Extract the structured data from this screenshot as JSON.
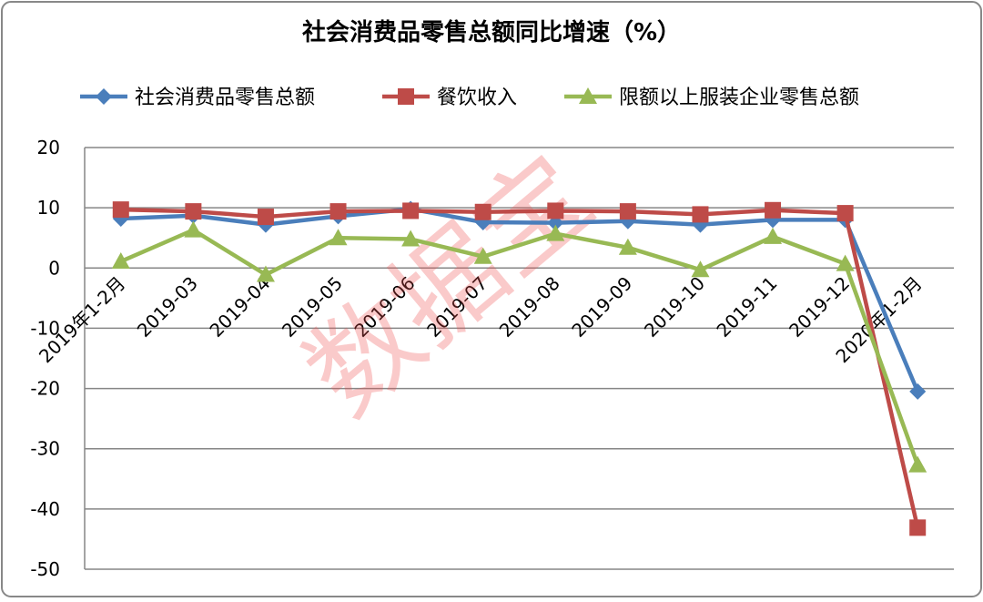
{
  "chart_data": {
    "type": "line",
    "title": "社会消费品零售总额同比增速（%）",
    "watermark": "数据宝",
    "categories": [
      "2019年1-2月",
      "2019-03",
      "2019-04",
      "2019-05",
      "2019-06",
      "2019-07",
      "2019-08",
      "2019-09",
      "2019-10",
      "2019-11",
      "2019-12",
      "2020年1-2月"
    ],
    "series": [
      {
        "name": "社会消费品零售总额",
        "color": "#4a7ebb",
        "marker": "diamond",
        "values": [
          8.2,
          8.7,
          7.2,
          8.6,
          9.8,
          7.6,
          7.5,
          7.8,
          7.2,
          8.0,
          8.0,
          -20.5
        ]
      },
      {
        "name": "餐饮收入",
        "color": "#be4b48",
        "marker": "square",
        "values": [
          9.7,
          9.4,
          8.5,
          9.4,
          9.5,
          9.3,
          9.5,
          9.4,
          8.9,
          9.6,
          9.1,
          -43.1
        ]
      },
      {
        "name": "限额以上服装企业零售总额",
        "color": "#98b954",
        "marker": "triangle",
        "values": [
          1.1,
          6.3,
          -1.1,
          5.0,
          4.8,
          1.9,
          5.7,
          3.4,
          -0.3,
          5.2,
          0.7,
          -32.7
        ]
      }
    ],
    "ylim": [
      -50,
      20
    ],
    "yticks": [
      -50,
      -40,
      -30,
      -20,
      -10,
      0,
      10,
      20
    ],
    "grid": true,
    "legend": "top"
  }
}
